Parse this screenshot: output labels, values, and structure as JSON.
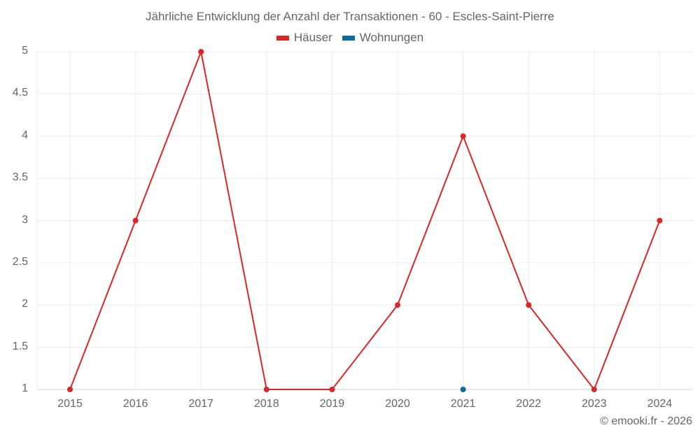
{
  "title": "Jährliche Entwicklung der Anzahl der Transaktionen - 60 - Escles-Saint-Pierre",
  "legend": [
    {
      "label": "Häuser",
      "color": "#dc2626"
    },
    {
      "label": "Wohnungen",
      "color": "#0a6aa1"
    }
  ],
  "credit": "© emooki.fr - 2026",
  "y_ticks": [
    "5",
    "4.5",
    "4",
    "3.5",
    "3",
    "2.5",
    "2",
    "1.5",
    "1"
  ],
  "x_ticks": [
    "2015",
    "2016",
    "2017",
    "2018",
    "2019",
    "2020",
    "2021",
    "2022",
    "2023",
    "2024"
  ],
  "chart_data": {
    "type": "line",
    "title": "Jährliche Entwicklung der Anzahl der Transaktionen - 60 - Escles-Saint-Pierre",
    "xlabel": "",
    "ylabel": "",
    "categories": [
      "2015",
      "2016",
      "2017",
      "2018",
      "2019",
      "2020",
      "2021",
      "2022",
      "2023",
      "2024"
    ],
    "series": [
      {
        "name": "Häuser",
        "color": "#dc2626",
        "values": [
          1,
          3,
          5,
          1,
          1,
          2,
          4,
          2,
          1,
          3
        ]
      },
      {
        "name": "Wohnungen",
        "color": "#0a6aa1",
        "values": [
          null,
          null,
          null,
          null,
          null,
          null,
          1,
          null,
          null,
          null
        ]
      }
    ],
    "ylim": [
      1,
      5
    ],
    "y_tick_step": 0.5,
    "grid": true,
    "legend_position": "top"
  }
}
